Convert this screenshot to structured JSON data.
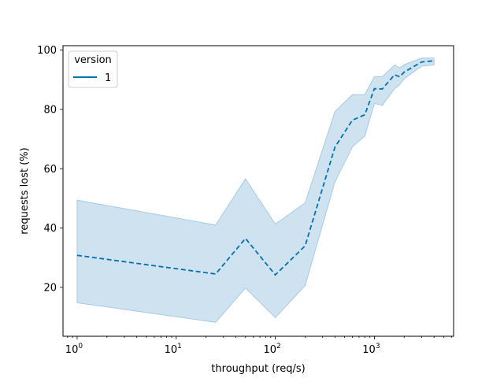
{
  "chart_data": {
    "type": "line",
    "title": "",
    "xlabel": "throughput (req/s)",
    "ylabel": "requests lost (%)",
    "xscale": "log",
    "xlim": [
      0.72,
      6300
    ],
    "ylim": [
      3.5,
      101.5
    ],
    "grid": false,
    "x_ticks": [
      {
        "base": "10",
        "exp": "0",
        "value": 1
      },
      {
        "base": "10",
        "exp": "1",
        "value": 10
      },
      {
        "base": "10",
        "exp": "2",
        "value": 100
      },
      {
        "base": "10",
        "exp": "3",
        "value": 1000
      }
    ],
    "y_ticks": [
      {
        "label": "20",
        "value": 20
      },
      {
        "label": "40",
        "value": 40
      },
      {
        "label": "60",
        "value": 60
      },
      {
        "label": "80",
        "value": 80
      },
      {
        "label": "100",
        "value": 100
      }
    ],
    "legend": {
      "title": "version",
      "placement": "top-left"
    },
    "series": [
      {
        "name": "1",
        "color": "#0072b2",
        "band_color": "#a6cbe3",
        "line_style": "dashed",
        "points": [
          {
            "x": 1,
            "y": 30.8,
            "lo": 14.8,
            "hi": 49.4
          },
          {
            "x": 25,
            "y": 24.5,
            "lo": 8.2,
            "hi": 41.0
          },
          {
            "x": 50,
            "y": 36.5,
            "lo": 19.8,
            "hi": 56.6
          },
          {
            "x": 100,
            "y": 24.2,
            "lo": 9.8,
            "hi": 41.3
          },
          {
            "x": 200,
            "y": 34.0,
            "lo": 20.6,
            "hi": 48.5
          },
          {
            "x": 400,
            "y": 67.3,
            "lo": 55.6,
            "hi": 79.3
          },
          {
            "x": 600,
            "y": 76.4,
            "lo": 67.4,
            "hi": 85.0
          },
          {
            "x": 800,
            "y": 78.2,
            "lo": 71.0,
            "hi": 85.0
          },
          {
            "x": 1000,
            "y": 87.0,
            "lo": 82.0,
            "hi": 91.0
          },
          {
            "x": 1200,
            "y": 86.9,
            "lo": 81.4,
            "hi": 91.0
          },
          {
            "x": 1600,
            "y": 91.7,
            "lo": 87.0,
            "hi": 95.0
          },
          {
            "x": 1800,
            "y": 91.0,
            "lo": 88.3,
            "hi": 94.0
          },
          {
            "x": 2000,
            "y": 92.6,
            "lo": 90.4,
            "hi": 95.1
          },
          {
            "x": 3000,
            "y": 96.0,
            "lo": 94.6,
            "hi": 97.3
          },
          {
            "x": 4000,
            "y": 96.4,
            "lo": 95.0,
            "hi": 97.3
          }
        ]
      }
    ]
  }
}
